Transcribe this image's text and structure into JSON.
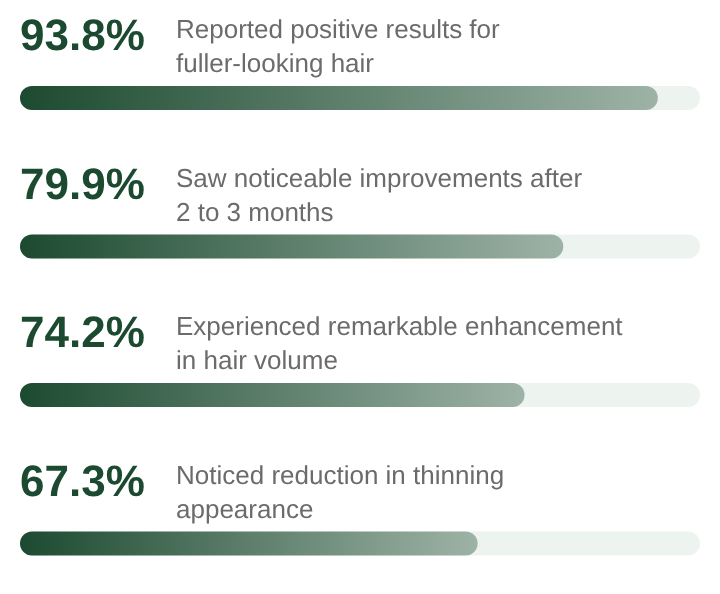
{
  "chart_data": {
    "type": "bar",
    "orientation": "horizontal",
    "categories": [
      "Reported positive results for fuller-looking hair",
      "Saw noticeable improvements after 2 to 3 months",
      "Experienced remarkable enhancement in hair volume",
      "Noticed reduction in thinning appearance"
    ],
    "values": [
      93.8,
      79.9,
      74.2,
      67.3
    ],
    "value_labels": [
      "93.8%",
      "79.9%",
      "74.2%",
      "67.3%"
    ],
    "color": "#1c4a30",
    "xlim": [
      0,
      100
    ],
    "tick_labels": false
  }
}
